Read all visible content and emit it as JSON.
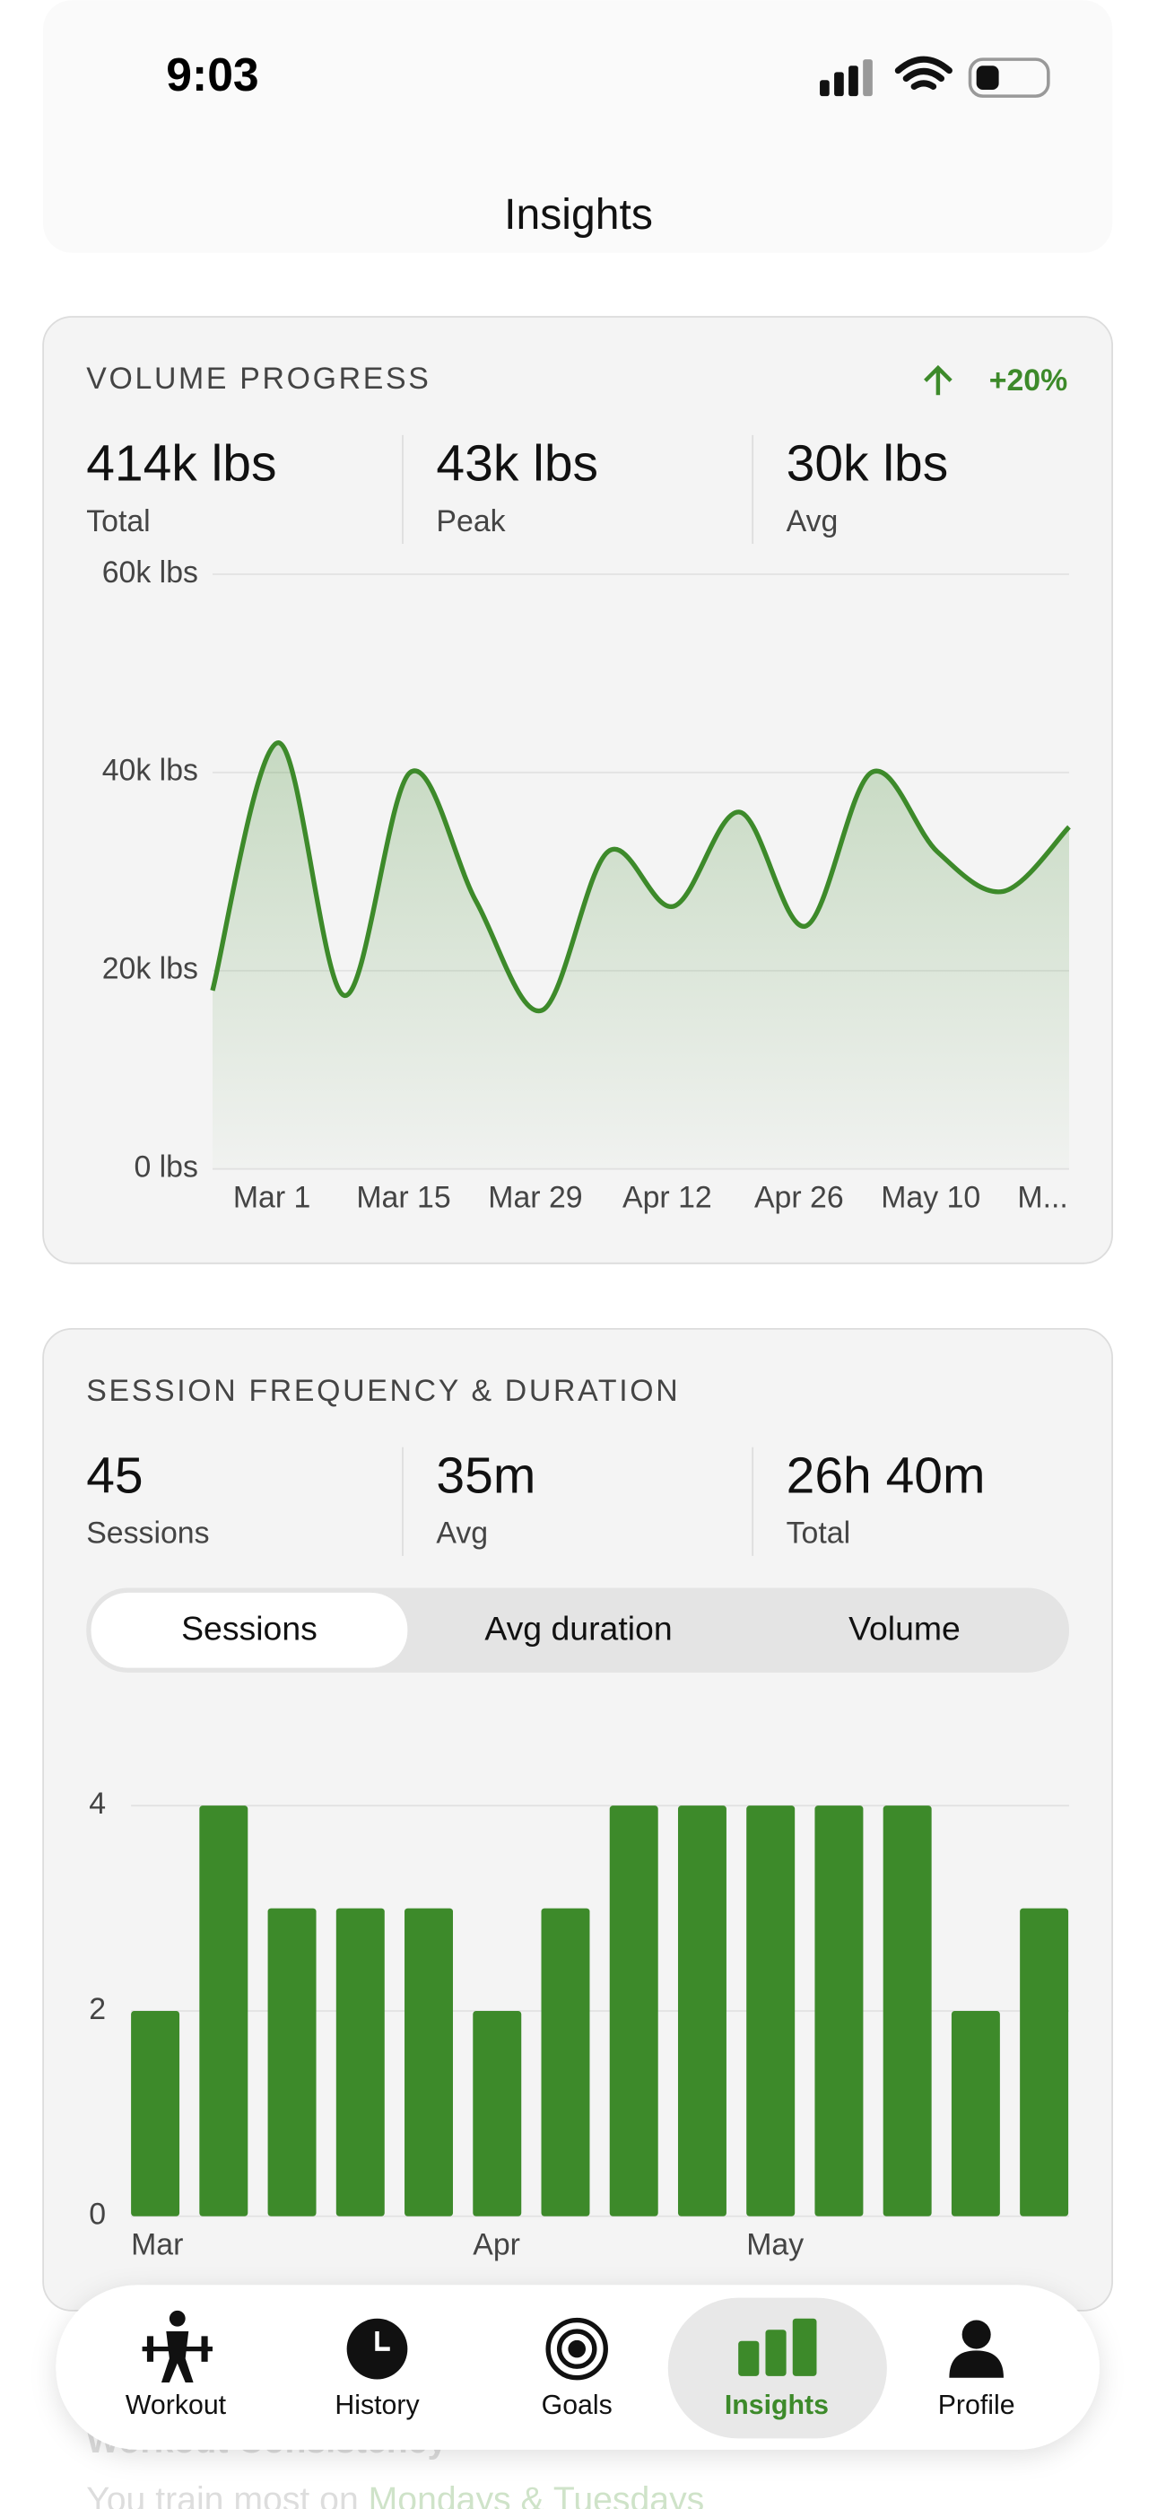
{
  "status_bar": {
    "time": "9:03"
  },
  "header": {
    "title": "Insights"
  },
  "volume_card": {
    "title": "VOLUME PROGRESS",
    "change": "+20%",
    "stats": [
      {
        "value": "414k lbs",
        "label": "Total"
      },
      {
        "value": "43k lbs",
        "label": "Peak"
      },
      {
        "value": "30k lbs",
        "label": "Avg"
      }
    ]
  },
  "frequency_card": {
    "title": "SESSION FREQUENCY & DURATION",
    "stats": [
      {
        "value": "45",
        "label": "Sessions"
      },
      {
        "value": "35m",
        "label": "Avg"
      },
      {
        "value": "26h 40m",
        "label": "Total"
      }
    ],
    "tabs": [
      "Sessions",
      "Avg duration",
      "Volume"
    ],
    "selected_tab": 0
  },
  "chart_data": [
    {
      "type": "line",
      "x": [
        0,
        1,
        2,
        3,
        4,
        5,
        6,
        7,
        8,
        9,
        10,
        11,
        12,
        13
      ],
      "values": [
        18000,
        43000,
        17500,
        40000,
        27000,
        16000,
        32000,
        26500,
        36000,
        24500,
        40000,
        32000,
        28000,
        34500
      ],
      "color": "#3d8a2a",
      "xlim": [
        0,
        13
      ],
      "xticks": [
        {
          "value": 0.9,
          "label": "Mar 1"
        },
        {
          "value": 2.9,
          "label": "Mar 15"
        },
        {
          "value": 4.9,
          "label": "Mar 29"
        },
        {
          "value": 6.9,
          "label": "Apr 12"
        },
        {
          "value": 8.9,
          "label": "Apr 26"
        },
        {
          "value": 10.9,
          "label": "May 10"
        },
        {
          "value": 12.6,
          "label": "M..."
        }
      ],
      "ylim": [
        0,
        60000
      ],
      "yticks": [
        {
          "value": 0,
          "label": "0 lbs"
        },
        {
          "value": 20000,
          "label": "20k lbs"
        },
        {
          "value": 40000,
          "label": "40k lbs"
        },
        {
          "value": 60000,
          "label": "60k lbs"
        }
      ],
      "grid": true
    },
    {
      "type": "bar",
      "categories": [
        "Mar",
        null,
        null,
        null,
        null,
        "Apr",
        null,
        null,
        null,
        "May",
        null,
        null,
        null,
        null
      ],
      "values": [
        2,
        4,
        3,
        3,
        3,
        2,
        3,
        4,
        4,
        4,
        4,
        4,
        2,
        3
      ],
      "color": "#3d8a2a",
      "ylim": [
        0,
        5
      ],
      "yticks": [
        0,
        2,
        4
      ],
      "grid": true
    }
  ],
  "tab_bar": {
    "items": [
      "Workout",
      "History",
      "Goals",
      "Insights",
      "Profile"
    ],
    "active": 3
  },
  "footer_peek": {
    "title": "Workout Consistency",
    "text": "You train most on",
    "highlight": "Mondays & Tuesdays"
  }
}
